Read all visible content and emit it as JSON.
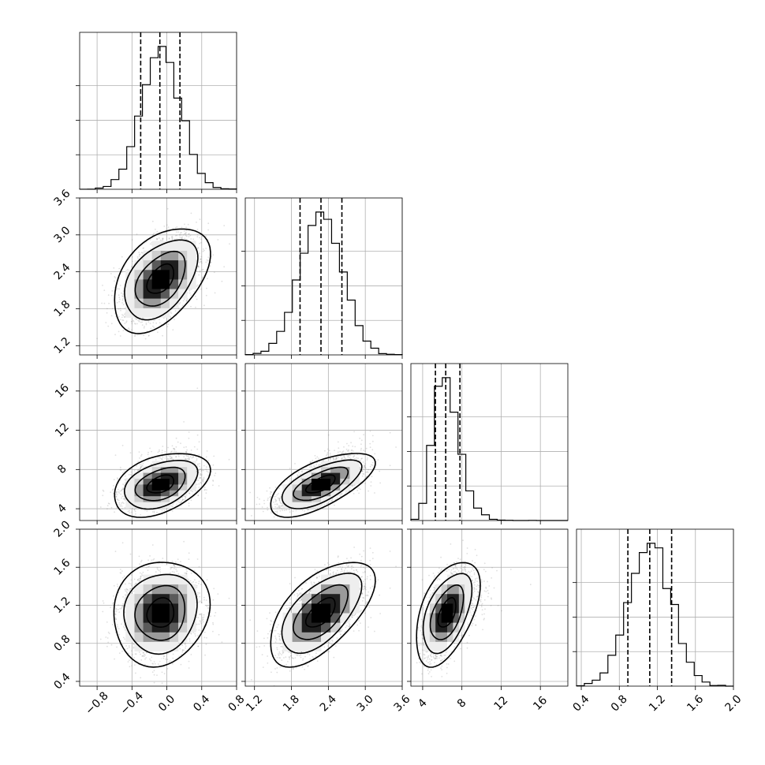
{
  "chart_data": {
    "type": "corner",
    "title": "",
    "n_params": 4,
    "grid": true,
    "colors": {
      "line": "#000000",
      "grid": "#b0b0b0",
      "points": "#7f7f7f",
      "density": [
        "#ffffff",
        "#eeeeee",
        "#cfcfcf",
        "#9a9a9a",
        "#5a5a5a",
        "#1e1e1e",
        "#000000"
      ]
    },
    "params": [
      {
        "index": 0,
        "range": [
          -1.0,
          0.8
        ],
        "ticks": [
          -0.8,
          -0.4,
          0.0,
          0.4,
          0.8
        ],
        "tick_labels": [
          "−0.8",
          "−0.4",
          "0.0",
          "0.4",
          "0.8"
        ],
        "mean": -0.07,
        "std": 0.22,
        "quantiles": [
          -0.3,
          -0.08,
          0.15
        ]
      },
      {
        "index": 1,
        "range": [
          1.05,
          3.6
        ],
        "ticks": [
          1.2,
          1.8,
          2.4,
          3.0,
          3.6
        ],
        "tick_labels": [
          "1.2",
          "1.8",
          "2.4",
          "3.0",
          "3.6"
        ],
        "mean": 2.28,
        "std": 0.34,
        "quantiles": [
          1.94,
          2.28,
          2.62
        ]
      },
      {
        "index": 2,
        "range": [
          2.8,
          18.8
        ],
        "ticks": [
          4,
          8,
          12,
          16
        ],
        "tick_labels": [
          "4",
          "8",
          "12",
          "16"
        ],
        "mean": 6.5,
        "std": 1.3,
        "quantiles": [
          5.3,
          6.35,
          7.8
        ]
      },
      {
        "index": 3,
        "range": [
          0.35,
          2.0
        ],
        "ticks": [
          0.4,
          0.8,
          1.2,
          1.6,
          2.0
        ],
        "tick_labels": [
          "0.4",
          "0.8",
          "1.2",
          "1.6",
          "2.0"
        ],
        "mean": 1.12,
        "std": 0.22,
        "quantiles": [
          0.89,
          1.12,
          1.35
        ]
      }
    ],
    "correlations": [
      {
        "pair": [
          0,
          1
        ],
        "rho": 0.45
      },
      {
        "pair": [
          0,
          2
        ],
        "rho": 0.4
      },
      {
        "pair": [
          1,
          2
        ],
        "rho": 0.65
      },
      {
        "pair": [
          0,
          3
        ],
        "rho": 0.1
      },
      {
        "pair": [
          1,
          3
        ],
        "rho": 0.6
      },
      {
        "pair": [
          2,
          3
        ],
        "rho": 0.5
      }
    ]
  }
}
